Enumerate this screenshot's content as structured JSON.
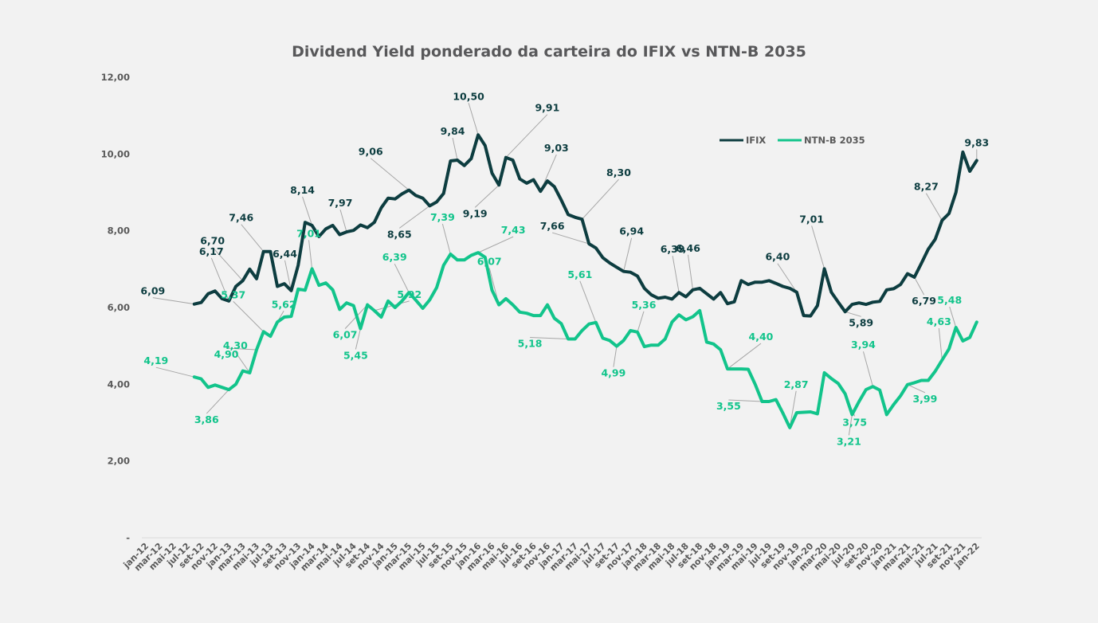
{
  "chart_data": {
    "type": "line",
    "title": "Dividend Yield ponderado da carteira do IFIX vs NTN-B 2035",
    "xlabel": "",
    "ylabel": "",
    "ylim": [
      0,
      12
    ],
    "yticks": [
      0,
      2,
      4,
      6,
      8,
      10,
      12
    ],
    "ytick_labels": [
      "-",
      "2,00",
      "4,00",
      "6,00",
      "8,00",
      "10,00",
      "12,00"
    ],
    "x_start": "jan-12",
    "x_end": "jan-22",
    "xtick_labels": [
      "jan-12",
      "mar-12",
      "mai-12",
      "jul-12",
      "set-12",
      "nov-12",
      "jan-13",
      "mar-13",
      "mai-13",
      "jul-13",
      "set-13",
      "nov-13",
      "jan-14",
      "mar-14",
      "mai-14",
      "jul-14",
      "set-14",
      "nov-14",
      "jan-15",
      "mar-15",
      "mai-15",
      "jul-15",
      "set-15",
      "nov-15",
      "jan-16",
      "mar-16",
      "mai-16",
      "jul-16",
      "set-16",
      "nov-16",
      "jan-17",
      "mar-17",
      "mai-17",
      "jul-17",
      "set-17",
      "nov-17",
      "jan-18",
      "mar-18",
      "mai-18",
      "jul-18",
      "set-18",
      "nov-18",
      "jan-19",
      "mar-19",
      "mai-19",
      "jul-19",
      "set-19",
      "nov-19",
      "jan-20",
      "mar-20",
      "mai-20",
      "jul-20",
      "set-20",
      "nov-20",
      "jan-21",
      "mar-21",
      "mai-21",
      "jul-21",
      "set-21",
      "nov-21",
      "jan-22"
    ],
    "grid": false,
    "legend": {
      "position": "top-right",
      "entries": [
        "IFIX",
        "NTN-B 2035"
      ]
    },
    "series": [
      {
        "name": "IFIX",
        "color": "#0d3d40",
        "start_month_index": 7,
        "values": [
          6.09,
          6.13,
          6.36,
          6.43,
          6.23,
          6.17,
          6.55,
          6.7,
          7.0,
          6.75,
          7.46,
          7.46,
          6.55,
          6.62,
          6.44,
          7.1,
          8.22,
          8.14,
          7.85,
          8.05,
          8.14,
          7.9,
          7.97,
          8.01,
          8.15,
          8.08,
          8.22,
          8.6,
          8.85,
          8.83,
          8.96,
          9.06,
          8.92,
          8.85,
          8.65,
          8.75,
          8.97,
          9.82,
          9.84,
          9.7,
          9.88,
          10.5,
          10.22,
          9.5,
          9.19,
          9.91,
          9.84,
          9.35,
          9.24,
          9.33,
          9.03,
          9.3,
          9.15,
          8.8,
          8.42,
          8.35,
          8.3,
          7.66,
          7.55,
          7.3,
          7.16,
          7.05,
          6.94,
          6.92,
          6.82,
          6.5,
          6.33,
          6.24,
          6.27,
          6.22,
          6.39,
          6.28,
          6.46,
          6.5,
          6.36,
          6.22,
          6.39,
          6.1,
          6.15,
          6.7,
          6.6,
          6.66,
          6.66,
          6.7,
          6.63,
          6.55,
          6.5,
          6.4,
          5.79,
          5.78,
          6.05,
          7.01,
          6.4,
          6.14,
          5.89,
          6.08,
          6.12,
          6.08,
          6.14,
          6.16,
          6.46,
          6.49,
          6.6,
          6.88,
          6.79,
          7.15,
          7.52,
          7.78,
          8.27,
          8.45,
          9.0,
          10.05,
          9.55,
          9.83
        ]
      },
      {
        "name": "NTN-B 2035",
        "color": "#12c48b",
        "start_month_index": 7,
        "values": [
          4.19,
          4.14,
          3.92,
          3.98,
          3.92,
          3.86,
          4.0,
          4.35,
          4.3,
          4.9,
          5.37,
          5.25,
          5.62,
          5.75,
          5.77,
          6.48,
          6.45,
          7.01,
          6.58,
          6.64,
          6.46,
          5.95,
          6.12,
          6.05,
          5.45,
          6.07,
          5.92,
          5.75,
          6.17,
          6.0,
          6.17,
          6.39,
          6.19,
          5.98,
          6.2,
          6.52,
          7.1,
          7.39,
          7.24,
          7.24,
          7.36,
          7.43,
          7.31,
          6.45,
          6.07,
          6.23,
          6.07,
          5.88,
          5.85,
          5.79,
          5.79,
          6.07,
          5.72,
          5.58,
          5.18,
          5.18,
          5.4,
          5.57,
          5.61,
          5.2,
          5.14,
          4.99,
          5.14,
          5.4,
          5.36,
          4.98,
          5.02,
          5.02,
          5.18,
          5.62,
          5.81,
          5.68,
          5.76,
          5.92,
          5.1,
          5.05,
          4.9,
          4.4,
          4.4,
          4.4,
          4.39,
          4.0,
          3.55,
          3.55,
          3.6,
          3.25,
          2.87,
          3.26,
          3.27,
          3.28,
          3.23,
          4.3,
          4.15,
          4.02,
          3.75,
          3.21,
          3.55,
          3.86,
          3.94,
          3.85,
          3.21,
          3.47,
          3.7,
          3.99,
          4.04,
          4.1,
          4.1,
          4.34,
          4.63,
          4.92,
          5.48,
          5.13,
          5.22,
          5.62
        ]
      }
    ],
    "annotations": [
      {
        "series": "IFIX",
        "label": "6,09"
      },
      {
        "series": "IFIX",
        "label": "6,17"
      },
      {
        "series": "IFIX",
        "label": "7,46"
      },
      {
        "series": "IFIX",
        "label": "6,44"
      },
      {
        "series": "IFIX",
        "label": "8,14"
      },
      {
        "series": "IFIX",
        "label": "7,97"
      },
      {
        "series": "IFIX",
        "label": "9,06"
      },
      {
        "series": "IFIX",
        "label": "8,65"
      },
      {
        "series": "IFIX",
        "label": "9,84"
      },
      {
        "series": "IFIX",
        "label": "10,50"
      },
      {
        "series": "IFIX",
        "label": "9,19"
      },
      {
        "series": "IFIX",
        "label": "9,91"
      },
      {
        "series": "IFIX",
        "label": "9,03"
      },
      {
        "series": "IFIX",
        "label": "8,30"
      },
      {
        "series": "IFIX",
        "label": "7,66"
      },
      {
        "series": "IFIX",
        "label": "6,94"
      },
      {
        "series": "IFIX",
        "label": "6,39"
      },
      {
        "series": "IFIX",
        "label": "6,70"
      },
      {
        "series": "IFIX",
        "label": "6,40"
      },
      {
        "series": "IFIX",
        "label": "7,01"
      },
      {
        "series": "IFIX",
        "label": "5,89"
      },
      {
        "series": "IFIX",
        "label": "6,46"
      },
      {
        "series": "IFIX",
        "label": "6,79"
      },
      {
        "series": "IFIX",
        "label": "8,27"
      },
      {
        "series": "IFIX",
        "label": "9,83"
      },
      {
        "series": "NTN-B 2035",
        "label": "4,19"
      },
      {
        "series": "NTN-B 2035",
        "label": "3,86"
      },
      {
        "series": "NTN-B 2035",
        "label": "5,37"
      },
      {
        "series": "NTN-B 2035",
        "label": "7,01"
      },
      {
        "series": "NTN-B 2035",
        "label": "5,45"
      },
      {
        "series": "NTN-B 2035",
        "label": "6,39"
      },
      {
        "series": "NTN-B 2035",
        "label": "7,39"
      },
      {
        "series": "NTN-B 2035",
        "label": "7,43"
      },
      {
        "series": "NTN-B 2035",
        "label": "6,07"
      },
      {
        "series": "NTN-B 2035",
        "label": "6,07"
      },
      {
        "series": "NTN-B 2035",
        "label": "5,18"
      },
      {
        "series": "NTN-B 2035",
        "label": "5,61"
      },
      {
        "series": "NTN-B 2035",
        "label": "4,99"
      },
      {
        "series": "NTN-B 2035",
        "label": "5,36"
      },
      {
        "series": "NTN-B 2035",
        "label": "5,92"
      },
      {
        "series": "NTN-B 2035",
        "label": "4,90"
      },
      {
        "series": "NTN-B 2035",
        "label": "4,40"
      },
      {
        "series": "NTN-B 2035",
        "label": "3,55"
      },
      {
        "series": "NTN-B 2035",
        "label": "2,87"
      },
      {
        "series": "NTN-B 2035",
        "label": "4,30"
      },
      {
        "series": "NTN-B 2035",
        "label": "3,75"
      },
      {
        "series": "NTN-B 2035",
        "label": "3,94"
      },
      {
        "series": "NTN-B 2035",
        "label": "3,21"
      },
      {
        "series": "NTN-B 2035",
        "label": "3,99"
      },
      {
        "series": "NTN-B 2035",
        "label": "4,63"
      },
      {
        "series": "NTN-B 2035",
        "label": "5,48"
      },
      {
        "series": "NTN-B 2035",
        "label": "5,62"
      }
    ]
  }
}
